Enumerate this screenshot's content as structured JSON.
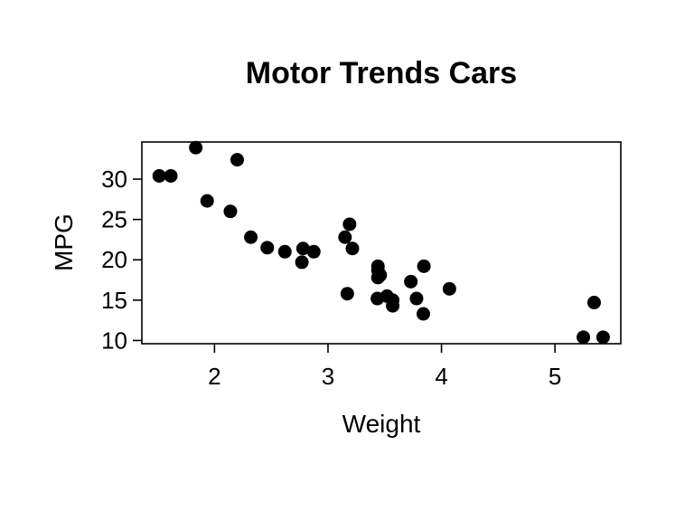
{
  "chart_data": {
    "type": "scatter",
    "title": "Motor Trends Cars",
    "xlabel": "Weight",
    "ylabel": "MPG",
    "xlim": [
      1.36,
      5.58
    ],
    "ylim": [
      9.6,
      34.6
    ],
    "x_ticks": [
      2,
      3,
      4,
      5
    ],
    "y_ticks": [
      10,
      15,
      20,
      25,
      30
    ],
    "grid": false,
    "legend": "none",
    "point_color": "#000000",
    "points": [
      {
        "x": 2.62,
        "y": 21.0
      },
      {
        "x": 2.875,
        "y": 21.0
      },
      {
        "x": 2.32,
        "y": 22.8
      },
      {
        "x": 3.215,
        "y": 21.4
      },
      {
        "x": 3.44,
        "y": 18.7
      },
      {
        "x": 3.46,
        "y": 18.1
      },
      {
        "x": 3.57,
        "y": 14.3
      },
      {
        "x": 3.19,
        "y": 24.4
      },
      {
        "x": 3.15,
        "y": 22.8
      },
      {
        "x": 3.44,
        "y": 19.2
      },
      {
        "x": 3.44,
        "y": 17.8
      },
      {
        "x": 4.07,
        "y": 16.4
      },
      {
        "x": 3.73,
        "y": 17.3
      },
      {
        "x": 3.78,
        "y": 15.2
      },
      {
        "x": 5.25,
        "y": 10.4
      },
      {
        "x": 5.424,
        "y": 10.4
      },
      {
        "x": 5.345,
        "y": 14.7
      },
      {
        "x": 2.2,
        "y": 32.4
      },
      {
        "x": 1.615,
        "y": 30.4
      },
      {
        "x": 1.835,
        "y": 33.9
      },
      {
        "x": 2.465,
        "y": 21.5
      },
      {
        "x": 3.52,
        "y": 15.5
      },
      {
        "x": 3.435,
        "y": 15.2
      },
      {
        "x": 3.84,
        "y": 13.3
      },
      {
        "x": 3.845,
        "y": 19.2
      },
      {
        "x": 1.935,
        "y": 27.3
      },
      {
        "x": 2.14,
        "y": 26.0
      },
      {
        "x": 1.513,
        "y": 30.4
      },
      {
        "x": 3.17,
        "y": 15.8
      },
      {
        "x": 2.77,
        "y": 19.7
      },
      {
        "x": 3.57,
        "y": 15.0
      },
      {
        "x": 2.78,
        "y": 21.4
      }
    ]
  }
}
